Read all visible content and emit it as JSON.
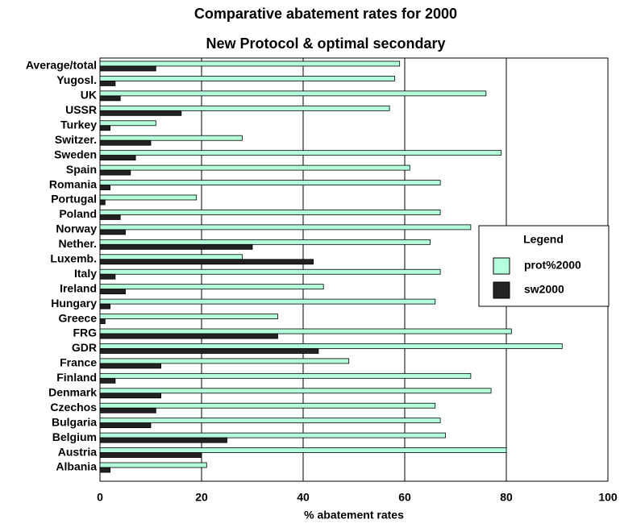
{
  "chart_data": {
    "type": "hbar",
    "title": "Comparative abatement rates for 2000",
    "subtitle": "New Protocol & optimal secondary",
    "x_label": "% abatement rates",
    "legend_title": "Legend",
    "legend_position": "right",
    "grid": true,
    "categories": [
      "Average/total",
      "Yugosl.",
      "UK",
      "USSR",
      "Turkey",
      "Switzer.",
      "Sweden",
      "Spain",
      "Romania",
      "Portugal",
      "Poland",
      "Norway",
      "Nether.",
      "Luxemb.",
      "Italy",
      "Ireland",
      "Hungary",
      "Greece",
      "FRG",
      "GDR",
      "France",
      "Finland",
      "Denmark",
      "Czechos",
      "Bulgaria",
      "Belgium",
      "Austria",
      "Albania"
    ],
    "series": [
      {
        "name": "prot%2000",
        "color": "#b4ffdc",
        "values": [
          59,
          58,
          76,
          57,
          11,
          28,
          79,
          61,
          67,
          19,
          67,
          73,
          65,
          28,
          67,
          44,
          66,
          35,
          81,
          91,
          49,
          73,
          77,
          66,
          67,
          68,
          80,
          21
        ]
      },
      {
        "name": "sw2000",
        "color": "#222222",
        "values": [
          11,
          3,
          4,
          16,
          2,
          10,
          7,
          6,
          2,
          1,
          4,
          5,
          30,
          42,
          3,
          5,
          2,
          1,
          35,
          43,
          12,
          3,
          12,
          11,
          10,
          25,
          20,
          2
        ]
      }
    ],
    "xlim": [
      0,
      100
    ],
    "xticks": [
      0,
      20,
      40,
      60,
      80,
      100
    ]
  }
}
